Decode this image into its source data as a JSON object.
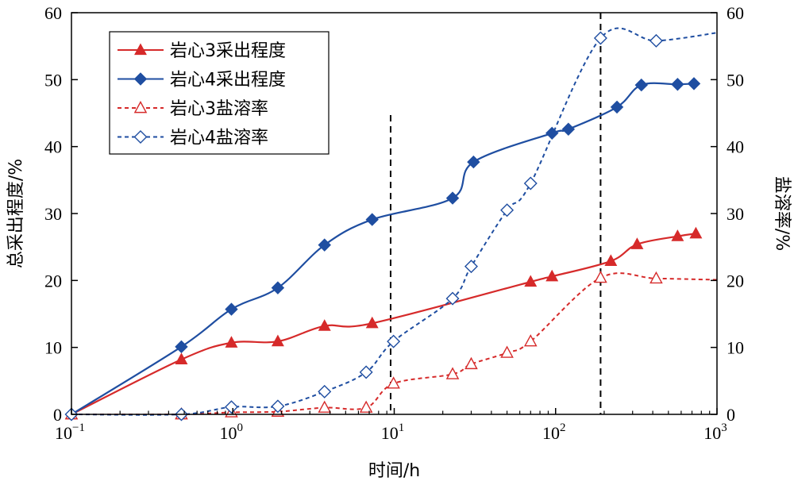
{
  "chart_data": {
    "type": "line",
    "xlabel": "时间/h",
    "ylabel_left": "总采出程度/%",
    "ylabel_right": "盐溶率/%",
    "x_scale": "log",
    "xlim": [
      0.1,
      1000
    ],
    "ylim_left": [
      0,
      60
    ],
    "ylim_right": [
      0,
      60
    ],
    "x_ticks": [
      {
        "value": 0.1,
        "base": "10",
        "exp": "−1"
      },
      {
        "value": 1,
        "base": "10",
        "exp": "0"
      },
      {
        "value": 10,
        "base": "10",
        "exp": "1"
      },
      {
        "value": 100,
        "base": "10",
        "exp": "2"
      },
      {
        "value": 1000,
        "base": "10",
        "exp": "3"
      }
    ],
    "y_ticks_left": [
      "0",
      "10",
      "20",
      "30",
      "40",
      "50",
      "60"
    ],
    "y_ticks_right": [
      "0",
      "10",
      "20",
      "30",
      "40",
      "50",
      "60"
    ],
    "vlines": [
      9.5,
      190
    ],
    "grid": false,
    "legend_position": "top-left",
    "series": [
      {
        "name": "岩心3采出程度",
        "color": "#d62a2a",
        "marker": "triangle",
        "filled": true,
        "dash": false,
        "axis": "left",
        "x": [
          0.1,
          0.48,
          0.98,
          1.9,
          3.7,
          7.3,
          70,
          95,
          220,
          320,
          570,
          740
        ],
        "y": [
          0,
          8.2,
          10.7,
          10.9,
          13.2,
          13.6,
          19.8,
          20.6,
          22.9,
          25.4,
          26.6,
          27.0
        ],
        "end_x": 740
      },
      {
        "name": "岩心4采出程度",
        "color": "#1f4ea1",
        "marker": "diamond",
        "filled": true,
        "dash": false,
        "axis": "left",
        "x": [
          0.1,
          0.48,
          0.98,
          1.9,
          3.7,
          7.3,
          23,
          31,
          95,
          120,
          240,
          340,
          570,
          720
        ],
        "y": [
          0,
          10.1,
          15.7,
          18.9,
          25.3,
          29.1,
          32.3,
          37.7,
          42.0,
          42.6,
          45.9,
          49.2,
          49.3,
          49.4
        ],
        "end_x": 720
      },
      {
        "name": "岩心3盐溶率",
        "color": "#d62a2a",
        "marker": "triangle",
        "filled": false,
        "dash": true,
        "axis": "right",
        "x": [
          0.1,
          0.48,
          0.98,
          1.9,
          3.7,
          6.7,
          9.9,
          23,
          30,
          50,
          70,
          190,
          420
        ],
        "y": [
          0,
          0,
          0.3,
          0.4,
          1.0,
          1.0,
          4.6,
          6.0,
          7.5,
          9.2,
          10.9,
          20.4,
          20.3
        ],
        "end_x": 1000,
        "end_y": 20.1
      },
      {
        "name": "岩心4盐溶率",
        "color": "#1f4ea1",
        "marker": "diamond",
        "filled": false,
        "dash": true,
        "axis": "right",
        "x": [
          0.1,
          0.48,
          0.98,
          1.9,
          3.7,
          6.7,
          9.9,
          23,
          30,
          50,
          70,
          190,
          420
        ],
        "y": [
          0,
          0,
          1.1,
          1.2,
          3.4,
          6.3,
          10.9,
          17.3,
          22.1,
          30.5,
          34.5,
          56.2,
          55.8
        ],
        "end_x": 1000,
        "end_y": 57.0
      }
    ]
  }
}
